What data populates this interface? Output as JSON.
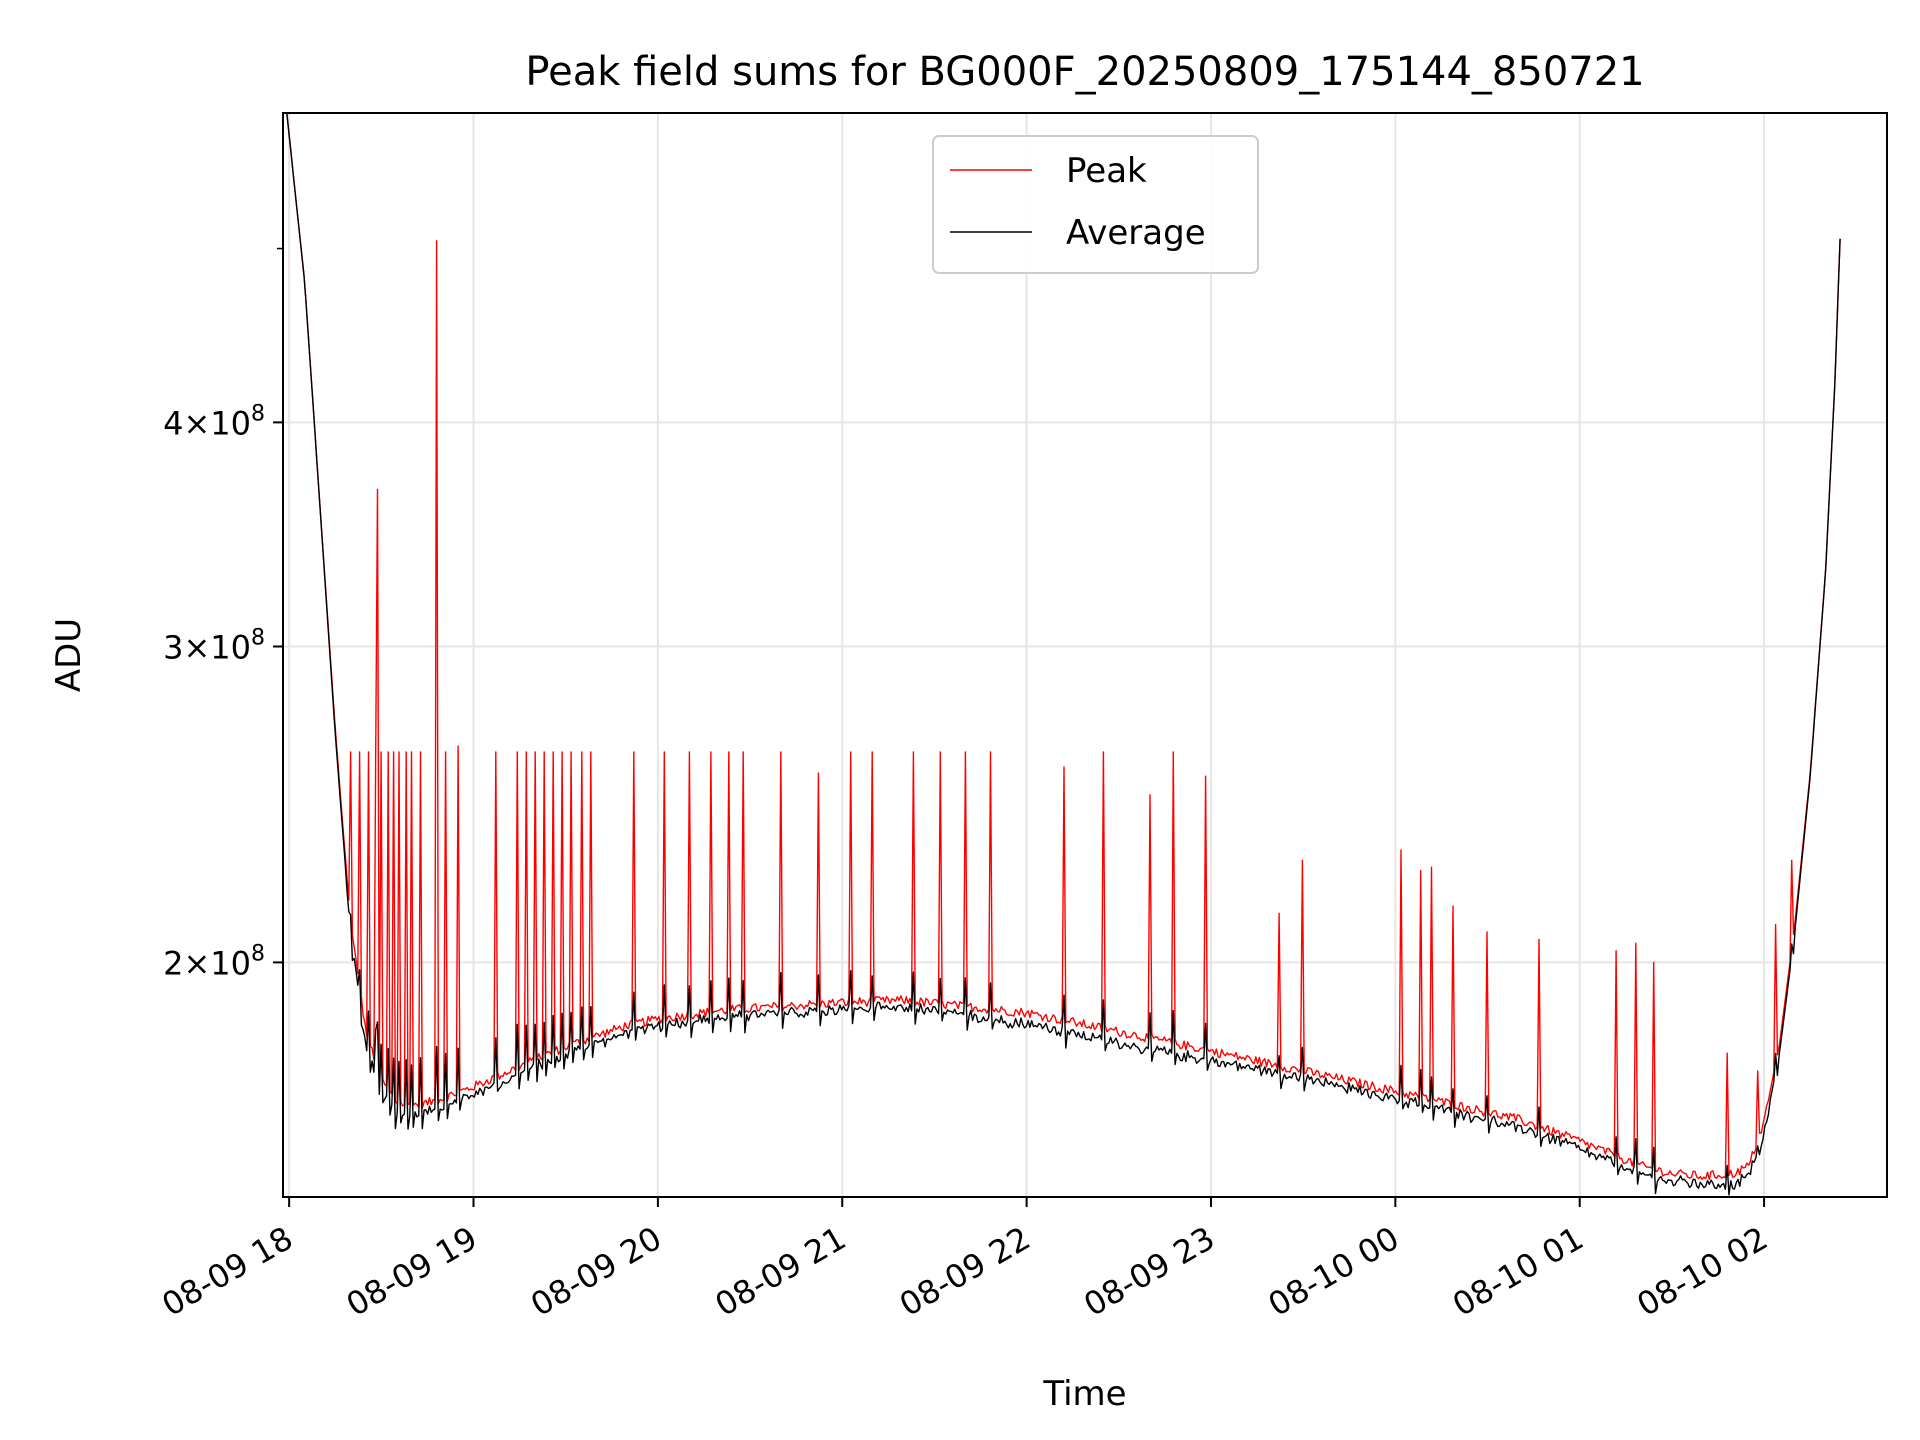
{
  "chart_data": {
    "type": "line",
    "title": "Peak field sums for BG000F_20250809_175144_850721",
    "xlabel": "Time",
    "ylabel": "ADU",
    "y_scale": "log",
    "ylim": [
      148000000,
      595000000
    ],
    "xlim": [
      "2025-08-09 17:58",
      "2025-08-10 02:40"
    ],
    "grid": true,
    "legend_position": "top-center",
    "x_ticks": [
      {
        "t": "2025-08-09 18:00",
        "label": "08-09 18"
      },
      {
        "t": "2025-08-09 19:00",
        "label": "08-09 19"
      },
      {
        "t": "2025-08-09 20:00",
        "label": "08-09 20"
      },
      {
        "t": "2025-08-09 21:00",
        "label": "08-09 21"
      },
      {
        "t": "2025-08-09 22:00",
        "label": "08-09 22"
      },
      {
        "t": "2025-08-09 23:00",
        "label": "08-09 23"
      },
      {
        "t": "2025-08-10 00:00",
        "label": "08-10 00"
      },
      {
        "t": "2025-08-10 01:00",
        "label": "08-10 01"
      },
      {
        "t": "2025-08-10 02:00",
        "label": "08-10 02"
      }
    ],
    "y_ticks": [
      {
        "value": 200000000,
        "mant": "2",
        "exp": "8"
      },
      {
        "value": 300000000,
        "mant": "3",
        "exp": "8"
      },
      {
        "value": 400000000,
        "mant": "4",
        "exp": "8"
      }
    ],
    "y_minor_ticks": [
      500000000
    ],
    "series": [
      {
        "name": "Peak",
        "color": "#ff0000",
        "x": [
          "2025-08-09 17:59",
          "2025-08-09 18:05",
          "2025-08-09 18:10",
          "2025-08-09 18:15",
          "2025-08-09 18:20",
          "2025-08-09 18:25",
          "2025-08-09 18:30",
          "2025-08-09 18:35",
          "2025-08-09 18:40",
          "2025-08-09 18:45",
          "2025-08-09 18:50",
          "2025-08-09 19:00",
          "2025-08-09 19:10",
          "2025-08-09 19:20",
          "2025-08-09 19:30",
          "2025-08-09 19:40",
          "2025-08-09 19:50",
          "2025-08-09 20:00",
          "2025-08-09 20:20",
          "2025-08-09 20:40",
          "2025-08-09 21:00",
          "2025-08-09 21:20",
          "2025-08-09 21:40",
          "2025-08-09 22:00",
          "2025-08-09 22:20",
          "2025-08-09 22:40",
          "2025-08-09 23:00",
          "2025-08-09 23:20",
          "2025-08-09 23:40",
          "2025-08-10 00:00",
          "2025-08-10 00:20",
          "2025-08-10 00:40",
          "2025-08-10 01:00",
          "2025-08-10 01:20",
          "2025-08-10 01:30",
          "2025-08-10 01:40",
          "2025-08-10 01:50",
          "2025-08-10 01:55",
          "2025-08-10 02:00",
          "2025-08-10 02:05",
          "2025-08-10 02:10",
          "2025-08-10 02:15",
          "2025-08-10 02:20",
          "2025-08-10 02:23",
          "2025-08-10 02:25"
        ],
        "y": [
          600000000,
          480000000,
          360000000,
          270000000,
          210000000,
          183000000,
          172000000,
          167000000,
          166500000,
          167000000,
          168000000,
          170500000,
          173500000,
          176500000,
          179500000,
          182000000,
          184500000,
          186000000,
          188000000,
          189000000,
          190000000,
          190500000,
          189000000,
          187500000,
          184500000,
          181500000,
          178500000,
          175500000,
          172500000,
          169500000,
          166500000,
          163500000,
          159000000,
          154000000,
          152500000,
          152000000,
          152500000,
          154000000,
          163000000,
          180000000,
          210000000,
          255000000,
          330000000,
          420000000,
          520000000
        ],
        "spikes": [
          [
            "2025-08-09 18:20",
            262000000
          ],
          [
            "2025-08-09 18:23",
            262000000
          ],
          [
            "2025-08-09 18:26",
            262000000
          ],
          [
            "2025-08-09 18:28",
            262000000
          ],
          [
            "2025-08-09 18:29",
            367000000
          ],
          [
            "2025-08-09 18:30",
            262000000
          ],
          [
            "2025-08-09 18:32",
            262000000
          ],
          [
            "2025-08-09 18:34",
            262000000
          ],
          [
            "2025-08-09 18:36",
            262000000
          ],
          [
            "2025-08-09 18:38",
            262000000
          ],
          [
            "2025-08-09 18:40",
            262000000
          ],
          [
            "2025-08-09 18:43",
            262000000
          ],
          [
            "2025-08-09 18:48",
            505000000
          ],
          [
            "2025-08-09 18:51",
            262000000
          ],
          [
            "2025-08-09 18:55",
            264000000
          ],
          [
            "2025-08-09 19:07",
            262000000
          ],
          [
            "2025-08-09 19:14",
            262000000
          ],
          [
            "2025-08-09 19:17",
            262000000
          ],
          [
            "2025-08-09 19:20",
            262000000
          ],
          [
            "2025-08-09 19:23",
            262000000
          ],
          [
            "2025-08-09 19:26",
            262000000
          ],
          [
            "2025-08-09 19:29",
            262000000
          ],
          [
            "2025-08-09 19:32",
            262000000
          ],
          [
            "2025-08-09 19:35",
            262000000
          ],
          [
            "2025-08-09 19:38",
            262000000
          ],
          [
            "2025-08-09 19:52",
            262000000
          ],
          [
            "2025-08-09 20:02",
            262000000
          ],
          [
            "2025-08-09 20:10",
            262000000
          ],
          [
            "2025-08-09 20:17",
            262000000
          ],
          [
            "2025-08-09 20:23",
            262000000
          ],
          [
            "2025-08-09 20:28",
            262000000
          ],
          [
            "2025-08-09 20:40",
            262000000
          ],
          [
            "2025-08-09 20:52",
            255000000
          ],
          [
            "2025-08-09 21:03",
            262000000
          ],
          [
            "2025-08-09 21:10",
            262000000
          ],
          [
            "2025-08-09 21:23",
            262000000
          ],
          [
            "2025-08-09 21:32",
            262000000
          ],
          [
            "2025-08-09 21:40",
            262000000
          ],
          [
            "2025-08-09 21:48",
            262000000
          ],
          [
            "2025-08-09 22:12",
            257000000
          ],
          [
            "2025-08-09 22:25",
            262000000
          ],
          [
            "2025-08-09 22:40",
            248000000
          ],
          [
            "2025-08-09 22:48",
            262000000
          ],
          [
            "2025-08-09 22:58",
            254000000
          ],
          [
            "2025-08-09 23:22",
            213000000
          ],
          [
            "2025-08-09 23:30",
            228000000
          ],
          [
            "2025-08-10 00:02",
            231000000
          ],
          [
            "2025-08-10 00:08",
            225000000
          ],
          [
            "2025-08-10 00:12",
            226000000
          ],
          [
            "2025-08-10 00:19",
            215000000
          ],
          [
            "2025-08-10 00:30",
            208000000
          ],
          [
            "2025-08-10 00:47",
            206000000
          ],
          [
            "2025-08-10 01:12",
            203000000
          ],
          [
            "2025-08-10 01:18",
            205000000
          ],
          [
            "2025-08-10 01:24",
            200000000
          ],
          [
            "2025-08-10 01:48",
            178000000
          ],
          [
            "2025-08-10 01:58",
            174000000
          ],
          [
            "2025-08-10 02:04",
            210000000
          ],
          [
            "2025-08-10 02:09",
            228000000
          ]
        ]
      },
      {
        "name": "Average",
        "color": "#000000",
        "x": [
          "2025-08-09 17:59",
          "2025-08-09 18:05",
          "2025-08-09 18:10",
          "2025-08-09 18:15",
          "2025-08-09 18:20",
          "2025-08-09 18:25",
          "2025-08-09 18:30",
          "2025-08-09 18:35",
          "2025-08-09 18:40",
          "2025-08-09 18:45",
          "2025-08-09 18:50",
          "2025-08-09 19:00",
          "2025-08-09 19:10",
          "2025-08-09 19:20",
          "2025-08-09 19:30",
          "2025-08-09 19:40",
          "2025-08-09 19:50",
          "2025-08-09 20:00",
          "2025-08-09 20:20",
          "2025-08-09 20:40",
          "2025-08-09 21:00",
          "2025-08-09 21:20",
          "2025-08-09 21:40",
          "2025-08-09 22:00",
          "2025-08-09 22:20",
          "2025-08-09 22:40",
          "2025-08-09 23:00",
          "2025-08-09 23:20",
          "2025-08-09 23:40",
          "2025-08-10 00:00",
          "2025-08-10 00:20",
          "2025-08-10 00:40",
          "2025-08-10 01:00",
          "2025-08-10 01:20",
          "2025-08-10 01:30",
          "2025-08-10 01:40",
          "2025-08-10 01:50",
          "2025-08-10 01:55",
          "2025-08-10 02:00",
          "2025-08-10 02:05",
          "2025-08-10 02:10",
          "2025-08-10 02:15",
          "2025-08-10 02:20",
          "2025-08-10 02:23",
          "2025-08-10 02:25"
        ],
        "y": [
          600000000,
          480000000,
          360000000,
          268000000,
          208000000,
          180000000,
          170000000,
          165000000,
          165000000,
          166000000,
          167000000,
          169500000,
          172500000,
          175500000,
          178500000,
          181000000,
          183500000,
          185000000,
          187000000,
          188000000,
          189000000,
          189500000,
          187500000,
          185500000,
          182500000,
          179500000,
          177000000,
          174500000,
          171500000,
          168500000,
          165500000,
          162500000,
          158000000,
          153000000,
          151500000,
          151000000,
          151000000,
          152500000,
          161000000,
          178000000,
          208000000,
          254000000,
          330000000,
          420000000,
          520000000
        ]
      }
    ]
  }
}
